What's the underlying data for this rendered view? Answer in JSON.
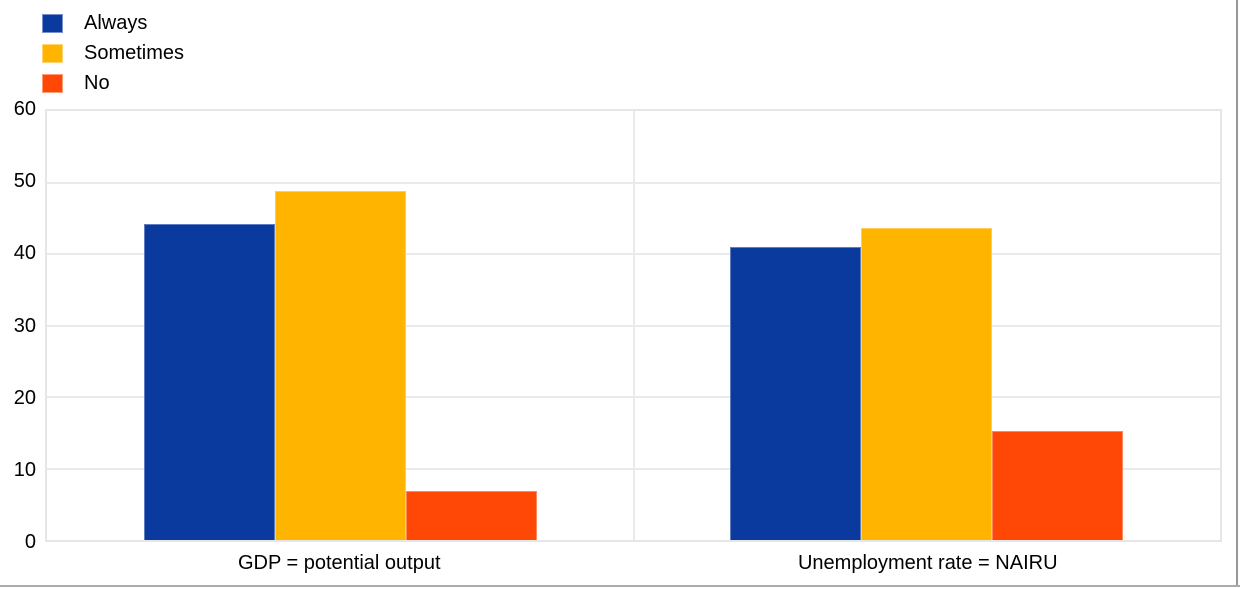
{
  "chart_data": {
    "type": "bar",
    "title": "",
    "xlabel": "",
    "ylabel": "",
    "categories": [
      "GDP = potential output",
      "Unemployment rate = NAIRU"
    ],
    "series": [
      {
        "name": "Always",
        "color": "#0a3a9d",
        "values": [
          44.2,
          41.0
        ]
      },
      {
        "name": "Sometimes",
        "color": "#ffb400",
        "values": [
          48.8,
          43.6
        ]
      },
      {
        "name": "No",
        "color": "#ff4806",
        "values": [
          6.8,
          15.2
        ]
      }
    ],
    "ylim": [
      0,
      60
    ],
    "yticks": [
      0,
      10,
      20,
      30,
      40,
      50,
      60
    ],
    "grid": true,
    "legend_position": "top-left",
    "gridline_color": "#eaeaea",
    "plot_border_color": "#e6e6e6"
  }
}
